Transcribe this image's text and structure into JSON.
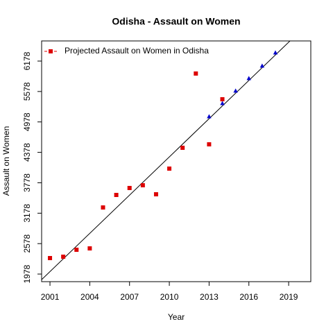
{
  "chart_data": {
    "type": "scatter",
    "title": "Odisha  -  Assault on Women",
    "x_label": "Year",
    "y_label": "Assault on Women",
    "xlim": [
      2000.37,
      2020.67
    ],
    "ylim": [
      1828,
      6575
    ],
    "xticks": [
      2001,
      2004,
      2007,
      2010,
      2013,
      2016,
      2019
    ],
    "yticks": [
      1978,
      2578,
      3178,
      3778,
      4378,
      4978,
      5578,
      6178
    ],
    "legend_position": "top-left",
    "series": [
      {
        "name": "Projected Assault on Women  in  Odisha",
        "color": "#dd0000",
        "marker": "square",
        "x": [
          2001,
          2002,
          2003,
          2004,
          2005,
          2006,
          2007,
          2008,
          2009,
          2010,
          2011,
          2012,
          2013,
          2014
        ],
        "values": [
          2293,
          2320,
          2457,
          2484,
          3291,
          3538,
          3675,
          3729,
          3551,
          4057,
          4468,
          5932,
          4536,
          5425
        ]
      },
      {
        "color": "#0000cc",
        "marker": "triangle",
        "x": [
          2013,
          2014,
          2015,
          2016,
          2017,
          2018
        ],
        "values": [
          5084,
          5343,
          5590,
          5836,
          6082,
          6342
        ]
      }
    ],
    "trend": {
      "color": "#000000",
      "x": [
        2000,
        2020
      ],
      "values": [
        1775,
        6801
      ]
    }
  }
}
